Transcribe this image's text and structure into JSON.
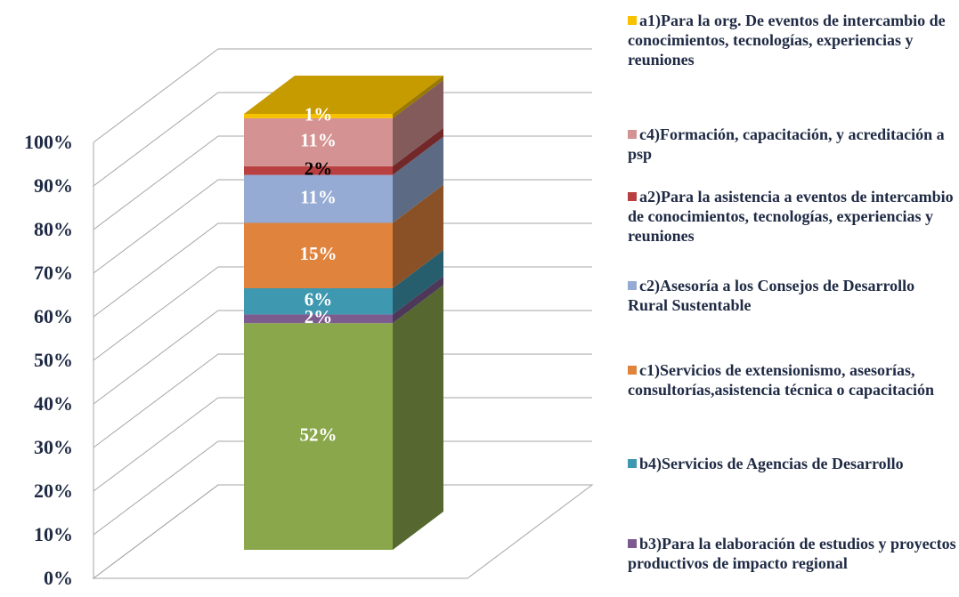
{
  "chart_data": {
    "type": "bar3d-stacked",
    "ylim": [
      0,
      100
    ],
    "yticks": [
      {
        "value": 0,
        "label": "0%"
      },
      {
        "value": 10,
        "label": "10%"
      },
      {
        "value": 20,
        "label": "20%"
      },
      {
        "value": 30,
        "label": "30%"
      },
      {
        "value": 40,
        "label": "40%"
      },
      {
        "value": 50,
        "label": "50%"
      },
      {
        "value": 60,
        "label": "60%"
      },
      {
        "value": 70,
        "label": "70%"
      },
      {
        "value": 80,
        "label": "80%"
      },
      {
        "value": 90,
        "label": "90%"
      },
      {
        "value": 100,
        "label": "100%"
      }
    ],
    "grid": true,
    "legend": "right",
    "series": [
      {
        "name": null,
        "color": "#8aa84b",
        "label_color": "#ffffff",
        "values": [
          52
        ],
        "value_labels": [
          "52%"
        ]
      },
      {
        "name": "b3)Para la elaboración de estudios y proyectos productivos de impacto regional",
        "color": "#7c5b8f",
        "label_color": "#ffffff",
        "values": [
          2
        ],
        "value_labels": [
          "2%"
        ]
      },
      {
        "name": "b4)Servicios de Agencias de Desarrollo",
        "color": "#3e98b0",
        "label_color": "#ffffff",
        "values": [
          6
        ],
        "value_labels": [
          "6%"
        ]
      },
      {
        "name": "c1)Servicios de extensionismo, asesorías, consultorías,asistencia técnica o capacitación",
        "color": "#e0833d",
        "label_color": "#ffffff",
        "values": [
          15
        ],
        "value_labels": [
          "15%"
        ]
      },
      {
        "name": "c2)Asesoría a los Consejos de Desarrollo Rural Sustentable",
        "color": "#95abd3",
        "label_color": "#ffffff",
        "values": [
          11
        ],
        "value_labels": [
          "11%"
        ]
      },
      {
        "name": "a2)Para la asistencia a eventos de intercambio de conocimientos, tecnologías, experiencias y reuniones",
        "color": "#b84040",
        "label_color": "#000000",
        "values": [
          2
        ],
        "value_labels": [
          "2%"
        ]
      },
      {
        "name": "c4)Formación, capacitación, y acreditación a psp",
        "color": "#d49292",
        "label_color": "#ffffff",
        "values": [
          11
        ],
        "value_labels": [
          "11%"
        ]
      },
      {
        "name": "a1)Para la org. De eventos de intercambio de conocimientos, tecnologías, experiencias y reuniones",
        "color": "#f7c200",
        "label_color": "#ffffff",
        "values": [
          1
        ],
        "value_labels": [
          "1%"
        ]
      }
    ]
  }
}
